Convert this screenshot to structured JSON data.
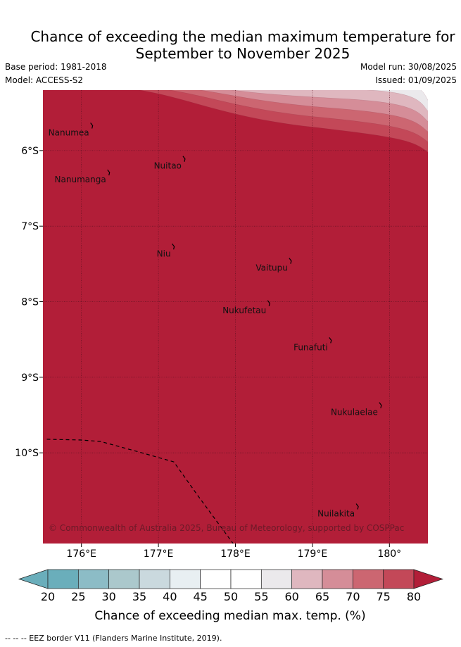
{
  "title": {
    "line1": "Chance of exceeding the median maximum temperature for",
    "line2": "September to November 2025"
  },
  "meta": {
    "base_period": "Base period: 1981-2018",
    "model": "Model: ACCESS-S2",
    "model_run": "Model run: 30/08/2025",
    "issued": "Issued: 01/09/2025"
  },
  "map": {
    "lon_range": [
      175.5,
      180.5
    ],
    "lat_range": [
      -11.2,
      -5.2
    ],
    "x_ticks": [
      {
        "lon": 176,
        "label": "176°E"
      },
      {
        "lon": 177,
        "label": "177°E"
      },
      {
        "lon": 178,
        "label": "178°E"
      },
      {
        "lon": 179,
        "label": "179°E"
      },
      {
        "lon": 180,
        "label": "180°"
      }
    ],
    "y_ticks": [
      {
        "lat": -6,
        "label": "6°S"
      },
      {
        "lat": -7,
        "label": "7°S"
      },
      {
        "lat": -8,
        "label": "8°S"
      },
      {
        "lat": -9,
        "label": "9°S"
      },
      {
        "lat": -10,
        "label": "10°S"
      }
    ],
    "places": [
      {
        "name": "Nanumea",
        "lon": 176.1,
        "lat": -5.68
      },
      {
        "name": "Nuitao",
        "lon": 177.3,
        "lat": -6.12
      },
      {
        "name": "Nanumanga",
        "lon": 176.32,
        "lat": -6.3
      },
      {
        "name": "Niu",
        "lon": 177.16,
        "lat": -7.28
      },
      {
        "name": "Vaitupu",
        "lon": 178.68,
        "lat": -7.47
      },
      {
        "name": "Nukufetau",
        "lon": 178.4,
        "lat": -8.03
      },
      {
        "name": "Funafuti",
        "lon": 179.2,
        "lat": -8.52
      },
      {
        "name": "Nukulaelae",
        "lon": 179.85,
        "lat": -9.38
      },
      {
        "name": "Nuilakita",
        "lon": 179.55,
        "lat": -10.72
      }
    ],
    "eez_border": [
      [
        175.55,
        -9.82
      ],
      [
        176.0,
        -9.83
      ],
      [
        176.25,
        -9.85
      ],
      [
        176.5,
        -9.92
      ],
      [
        176.75,
        -9.99
      ],
      [
        177.2,
        -10.12
      ],
      [
        177.5,
        -10.55
      ],
      [
        177.97,
        -11.2
      ]
    ],
    "copyright": "© Commonwealth of Australia 2025, Bureau of Meteorology, supported by COSPPac",
    "background_color": "#b21e38"
  },
  "colorbar": {
    "ticks": [
      "20",
      "25",
      "30",
      "35",
      "40",
      "45",
      "50",
      "55",
      "60",
      "65",
      "70",
      "75",
      "80"
    ],
    "colors": [
      "#6aaebb",
      "#8cbcc6",
      "#abc8cc",
      "#cad9de",
      "#e8eff2",
      "#ffffff",
      "#ffffff",
      "#ebe9ec",
      "#dfb7bf",
      "#d58d98",
      "#cc6671",
      "#c34858"
    ],
    "under_color": "#6aaebb",
    "over_color": "#b21e38",
    "label": "Chance of exceeding median max. temp. (%)"
  },
  "footer": "-- -- -- EEZ border V11 (Flanders Marine Institute, 2019)."
}
